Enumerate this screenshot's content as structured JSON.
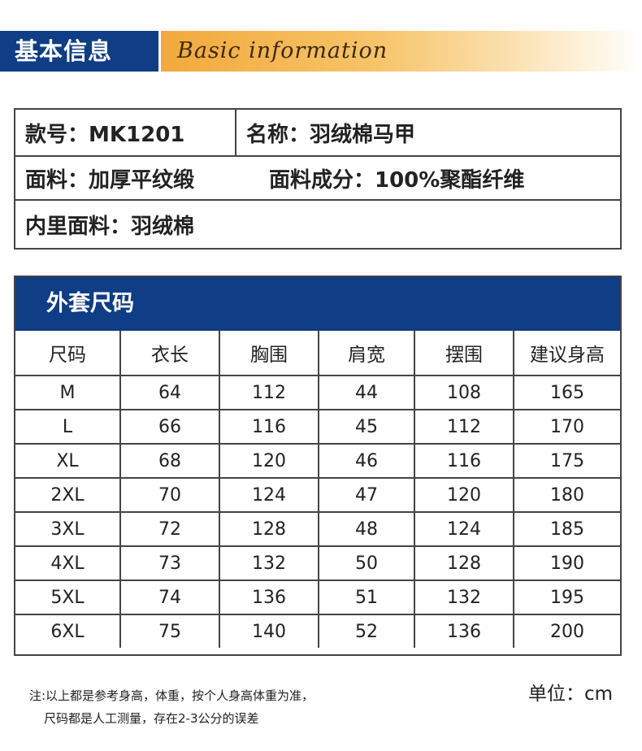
{
  "header": {
    "title": "基本信息",
    "script_text": "Basic information"
  },
  "info": {
    "row1": {
      "style_no": "款号：MK1201",
      "name": "名称：羽绒棉马甲"
    },
    "row2": {
      "fabric": "面料：加厚平纹缎",
      "composition": "面料成分：100%聚酯纤维"
    },
    "row3": {
      "lining": "内里面料：羽绒棉"
    }
  },
  "size_table": {
    "title": "外套尺码",
    "headers": [
      "尺码",
      "衣长",
      "胸围",
      "肩宽",
      "摆围",
      "建议身高"
    ],
    "rows": [
      [
        "M",
        "64",
        "112",
        "44",
        "108",
        "165"
      ],
      [
        "L",
        "66",
        "116",
        "45",
        "112",
        "170"
      ],
      [
        "XL",
        "68",
        "120",
        "46",
        "116",
        "175"
      ],
      [
        "2XL",
        "70",
        "124",
        "47",
        "120",
        "180"
      ],
      [
        "3XL",
        "72",
        "128",
        "48",
        "124",
        "185"
      ],
      [
        "4XL",
        "73",
        "132",
        "50",
        "128",
        "190"
      ],
      [
        "5XL",
        "74",
        "136",
        "51",
        "132",
        "195"
      ],
      [
        "6XL",
        "75",
        "140",
        "52",
        "136",
        "200"
      ]
    ]
  },
  "footer": {
    "note_line1": "注:以上都是参考身高，体重，按个人身高体重为准，",
    "note_line2": "尺码都是人工测量，存在2-3公分的误差",
    "unit": "单位：cm"
  },
  "colors": {
    "brand_blue": "#0f3d86",
    "gold": "#f2a93b"
  }
}
